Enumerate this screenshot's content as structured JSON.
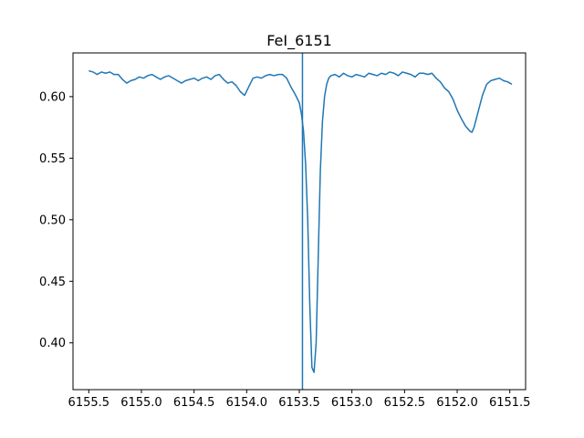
{
  "chart_data": {
    "type": "line",
    "title": "FeI_6151",
    "xlabel": "",
    "ylabel": "",
    "x_inverted": true,
    "xlim": [
      6155.65,
      6151.35
    ],
    "ylim": [
      0.362,
      0.6355
    ],
    "xticks": [
      6155.5,
      6155.0,
      6154.5,
      6154.0,
      6153.5,
      6153.0,
      6152.5,
      6152.0,
      6151.5
    ],
    "xtick_labels": [
      "6155.5",
      "6155.0",
      "6154.5",
      "6154.0",
      "6153.5",
      "6153.0",
      "6152.5",
      "6152.0",
      "6151.5"
    ],
    "yticks": [
      0.4,
      0.45,
      0.5,
      0.55,
      0.6
    ],
    "ytick_labels": [
      "0.40",
      "0.45",
      "0.50",
      "0.55",
      "0.60"
    ],
    "grid": false,
    "line_color": "#1f77b4",
    "vline": {
      "x": 6153.47,
      "color": "#1f77b4"
    },
    "series": [
      {
        "x": [
          6155.5,
          6155.46,
          6155.42,
          6155.38,
          6155.34,
          6155.3,
          6155.26,
          6155.22,
          6155.18,
          6155.14,
          6155.1,
          6155.06,
          6155.02,
          6154.98,
          6154.94,
          6154.9,
          6154.86,
          6154.82,
          6154.78,
          6154.74,
          6154.7,
          6154.66,
          6154.62,
          6154.58,
          6154.54,
          6154.5,
          6154.46,
          6154.42,
          6154.38,
          6154.34,
          6154.3,
          6154.26,
          6154.22,
          6154.18,
          6154.14,
          6154.1,
          6154.06,
          6154.02,
          6153.98,
          6153.94,
          6153.9,
          6153.86,
          6153.82,
          6153.78,
          6153.74,
          6153.7,
          6153.66,
          6153.62,
          6153.58,
          6153.54,
          6153.5,
          6153.48,
          6153.46,
          6153.44,
          6153.42,
          6153.4,
          6153.38,
          6153.36,
          6153.34,
          6153.32,
          6153.3,
          6153.28,
          6153.26,
          6153.24,
          6153.22,
          6153.2,
          6153.16,
          6153.12,
          6153.08,
          6153.04,
          6153.0,
          6152.96,
          6152.92,
          6152.88,
          6152.84,
          6152.8,
          6152.76,
          6152.72,
          6152.68,
          6152.64,
          6152.6,
          6152.56,
          6152.52,
          6152.48,
          6152.44,
          6152.4,
          6152.36,
          6152.32,
          6152.28,
          6152.24,
          6152.2,
          6152.16,
          6152.12,
          6152.08,
          6152.04,
          6152.0,
          6151.96,
          6151.92,
          6151.88,
          6151.86,
          6151.84,
          6151.8,
          6151.76,
          6151.72,
          6151.68,
          6151.64,
          6151.6,
          6151.56,
          6151.52,
          6151.48
        ],
        "y": [
          0.621,
          0.62,
          0.618,
          0.62,
          0.619,
          0.62,
          0.618,
          0.618,
          0.614,
          0.611,
          0.613,
          0.614,
          0.616,
          0.615,
          0.617,
          0.618,
          0.616,
          0.614,
          0.616,
          0.617,
          0.615,
          0.613,
          0.611,
          0.613,
          0.614,
          0.615,
          0.613,
          0.615,
          0.616,
          0.614,
          0.617,
          0.618,
          0.614,
          0.611,
          0.612,
          0.609,
          0.604,
          0.601,
          0.608,
          0.615,
          0.616,
          0.615,
          0.617,
          0.618,
          0.617,
          0.618,
          0.618,
          0.615,
          0.608,
          0.602,
          0.595,
          0.586,
          0.572,
          0.545,
          0.5,
          0.43,
          0.38,
          0.376,
          0.4,
          0.47,
          0.54,
          0.58,
          0.6,
          0.61,
          0.615,
          0.617,
          0.618,
          0.616,
          0.619,
          0.617,
          0.616,
          0.618,
          0.617,
          0.616,
          0.619,
          0.618,
          0.617,
          0.619,
          0.618,
          0.62,
          0.619,
          0.617,
          0.62,
          0.619,
          0.618,
          0.616,
          0.619,
          0.619,
          0.618,
          0.619,
          0.615,
          0.612,
          0.607,
          0.604,
          0.598,
          0.589,
          0.582,
          0.576,
          0.572,
          0.571,
          0.575,
          0.588,
          0.601,
          0.61,
          0.613,
          0.614,
          0.615,
          0.613,
          0.612,
          0.61
        ]
      }
    ]
  }
}
